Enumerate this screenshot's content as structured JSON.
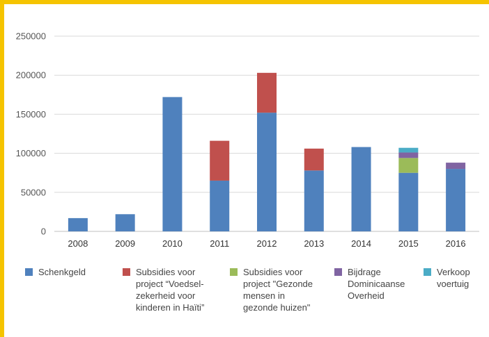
{
  "chart_data": {
    "type": "bar",
    "stacked": true,
    "categories": [
      "2008",
      "2009",
      "2010",
      "2011",
      "2012",
      "2013",
      "2014",
      "2015",
      "2016"
    ],
    "ylim": [
      0,
      250000
    ],
    "yticks": [
      "0",
      "50000",
      "100000",
      "150000",
      "200000",
      "250000"
    ],
    "grid": true,
    "legend_position": "bottom",
    "series": [
      {
        "name": "Schenkgeld",
        "color": "#4f81bd",
        "legend_lines": [
          "Schenkgeld"
        ],
        "values": [
          17000,
          22000,
          172000,
          65000,
          152000,
          78000,
          108000,
          75000,
          80000
        ]
      },
      {
        "name": "Subsidies voor project “Voedsel-zekerheid voor kinderen in Haïti”",
        "color": "#c0504d",
        "legend_lines": [
          "Subsidies voor",
          "project “Voedsel-",
          "zekerheid voor",
          "kinderen in Haïti”"
        ],
        "values": [
          0,
          0,
          0,
          51000,
          51000,
          28000,
          0,
          0,
          0
        ]
      },
      {
        "name": "Subsidies voor project \"Gezonde mensen in gezonde huizen\"",
        "color": "#9bbb59",
        "legend_lines": [
          "Subsidies voor",
          "project \"Gezonde",
          "mensen in",
          "gezonde huizen\""
        ],
        "values": [
          0,
          0,
          0,
          0,
          0,
          0,
          0,
          19000,
          0
        ]
      },
      {
        "name": "Bijdrage Dominicaanse Overheid",
        "color": "#8064a2",
        "legend_lines": [
          "Bijdrage",
          "Dominicaanse",
          "Overheid"
        ],
        "values": [
          0,
          0,
          0,
          0,
          0,
          0,
          0,
          7000,
          8000
        ]
      },
      {
        "name": "Verkoop voertuig",
        "color": "#4bacc6",
        "legend_lines": [
          "Verkoop",
          "voertuig"
        ],
        "values": [
          0,
          0,
          0,
          0,
          0,
          0,
          0,
          6000,
          0
        ]
      }
    ]
  }
}
